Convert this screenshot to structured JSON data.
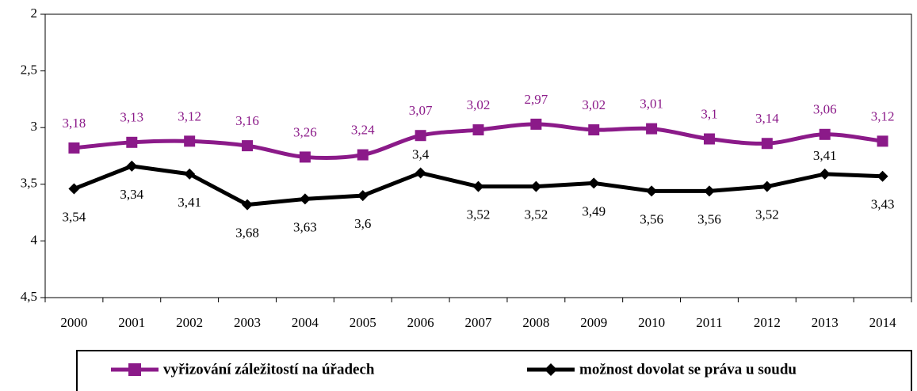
{
  "chart_data": {
    "type": "line",
    "categories": [
      "2000",
      "2001",
      "2002",
      "2003",
      "2004",
      "2005",
      "2006",
      "2007",
      "2008",
      "2009",
      "2010",
      "2011",
      "2012",
      "2013",
      "2014"
    ],
    "series": [
      {
        "name": "vyřizování záležitostí na úřadech",
        "color": "#8b1a89",
        "marker": "square",
        "smooth": true,
        "values": [
          3.18,
          3.13,
          3.12,
          3.16,
          3.26,
          3.24,
          3.07,
          3.02,
          2.97,
          3.02,
          3.01,
          3.1,
          3.14,
          3.06,
          3.12
        ],
        "value_labels": [
          "3,18",
          "3,13",
          "3,12",
          "3,16",
          "3,26",
          "3,24",
          "3,07",
          "3,02",
          "2,97",
          "3,02",
          "3,01",
          "3,1",
          "3,14",
          "3,06",
          "3,12"
        ]
      },
      {
        "name": "možnost dovolat se práva u soudu",
        "color": "#000000",
        "marker": "diamond",
        "smooth": false,
        "values": [
          3.54,
          3.34,
          3.41,
          3.68,
          3.63,
          3.6,
          3.4,
          3.52,
          3.52,
          3.49,
          3.56,
          3.56,
          3.52,
          3.41,
          3.43
        ],
        "value_labels": [
          "3,54",
          "3,34",
          "3,41",
          "3,68",
          "3,63",
          "3,6",
          "3,4",
          "3,52",
          "3,52",
          "3,49",
          "3,56",
          "3,56",
          "3,52",
          "3,41",
          "3,43"
        ]
      }
    ],
    "ylim": [
      2,
      4.5
    ],
    "y_inverted": true,
    "yticks": [
      2,
      {
        "value": 2.5,
        "label": "2,5"
      },
      3,
      {
        "value": 3.5,
        "label": "3,5"
      },
      4,
      {
        "value": 4.5,
        "label": "4,5"
      }
    ],
    "legend": "bottom"
  }
}
